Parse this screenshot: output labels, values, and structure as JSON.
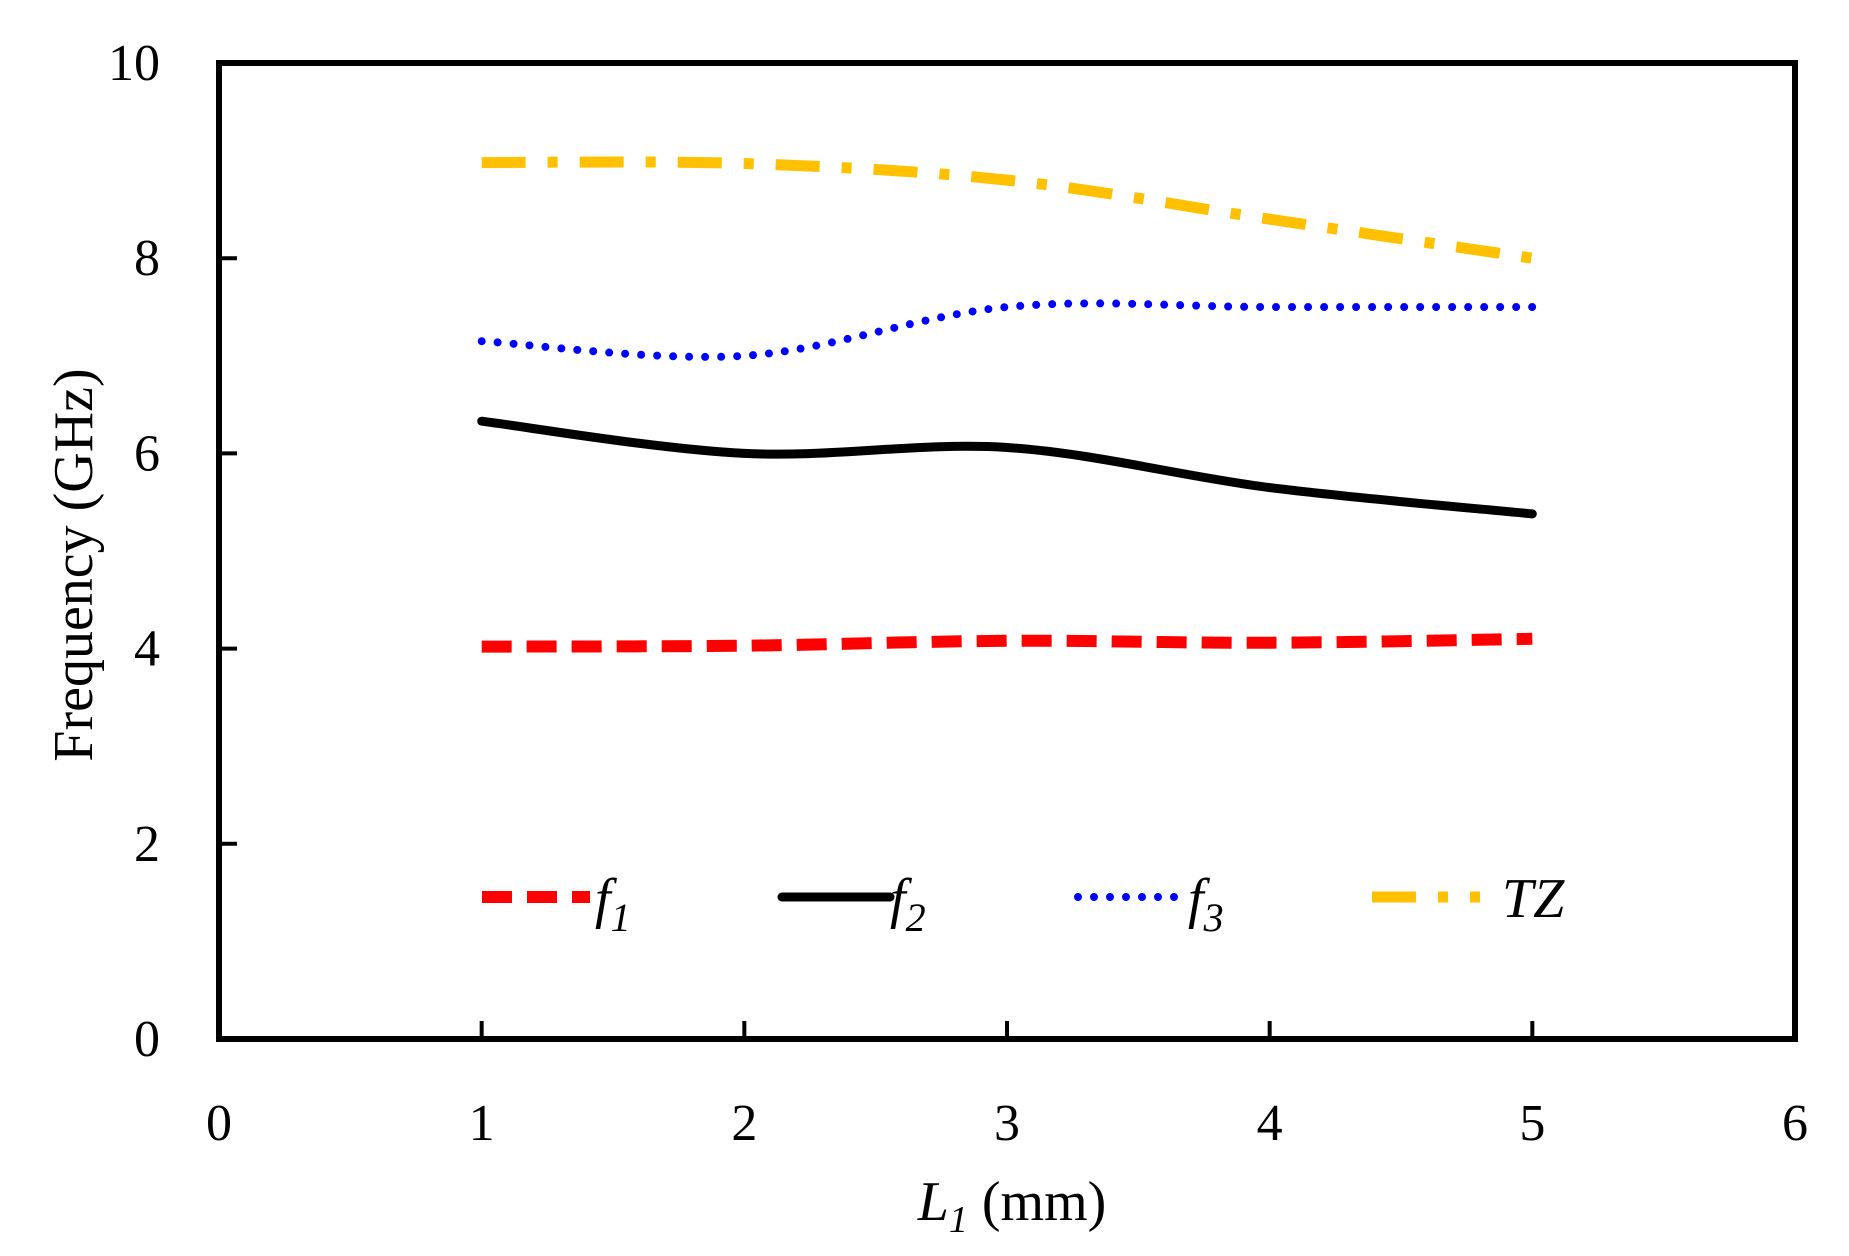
{
  "chart_data": {
    "type": "line",
    "title": "",
    "xlabel": {
      "main": "L",
      "sub": "1",
      "unit": " (mm)"
    },
    "ylabel": "Frequency (GHz)",
    "xlim": [
      0,
      6
    ],
    "ylim": [
      0,
      10
    ],
    "x_ticks": [
      0,
      1,
      2,
      3,
      4,
      5,
      6
    ],
    "y_ticks": [
      0,
      2,
      4,
      6,
      8,
      10
    ],
    "grid": false,
    "legend_position": "bottom-center",
    "x": [
      1,
      2,
      3,
      4,
      5
    ],
    "series": [
      {
        "key": "f1",
        "name": "f",
        "sub": "1",
        "values": [
          4.02,
          4.03,
          4.08,
          4.06,
          4.1
        ],
        "color": "#ff0000",
        "style": "dashed"
      },
      {
        "key": "f2",
        "name": "f",
        "sub": "2",
        "values": [
          6.33,
          6.0,
          6.06,
          5.65,
          5.38
        ],
        "color": "#000000",
        "style": "solid"
      },
      {
        "key": "f3",
        "name": "f",
        "sub": "3",
        "values": [
          7.15,
          7.0,
          7.5,
          7.5,
          7.5
        ],
        "color": "#0000ff",
        "style": "dotted"
      },
      {
        "key": "tz",
        "name": "TZ",
        "sub": "",
        "values": [
          8.98,
          8.97,
          8.8,
          8.4,
          8.0
        ],
        "color": "#ffc000",
        "style": "dash-dot"
      }
    ]
  }
}
